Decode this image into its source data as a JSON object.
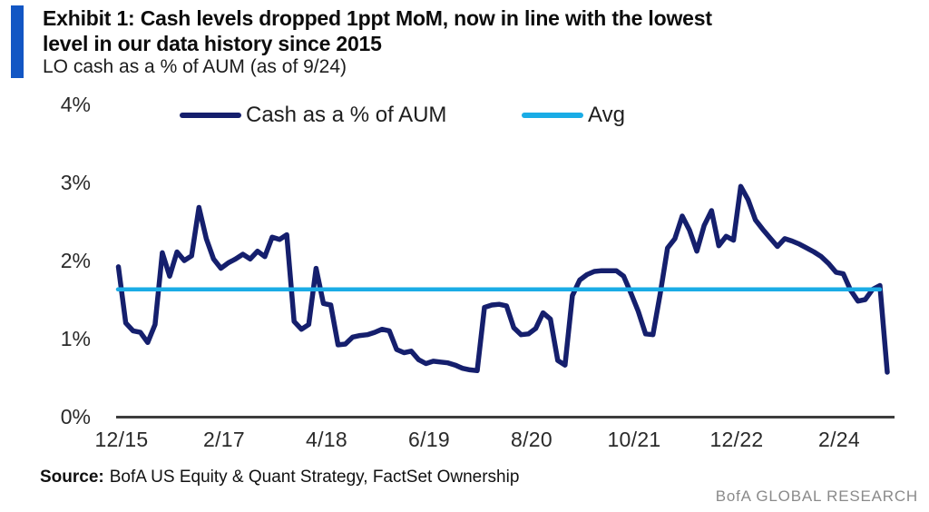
{
  "header": {
    "accent_color": "#1256c4",
    "title_line1": "Exhibit 1: Cash levels dropped 1ppt MoM, now in line with the lowest",
    "title_line2": "level in our data history since 2015",
    "subtitle": "LO cash as a % of AUM (as of 9/24)"
  },
  "chart_data": {
    "type": "line",
    "title": "LO cash as a % of AUM (as of 9/24)",
    "grid": false,
    "legend_position": "top",
    "xlabel": "",
    "ylabel": "Cash as a % of AUM",
    "ylim": [
      0,
      4
    ],
    "y_unit": "%",
    "y_tick_labels": [
      "4%",
      "3%",
      "2%",
      "1%",
      "0%"
    ],
    "x_tick_labels": [
      "12/15",
      "2/17",
      "4/18",
      "6/19",
      "8/20",
      "10/21",
      "12/22",
      "2/24"
    ],
    "x_frequency": "monthly",
    "x_range": [
      "12/15",
      "9/24"
    ],
    "series": [
      {
        "name": "Cash as a % of AUM",
        "color": "#151f6d",
        "values": [
          1.92,
          1.2,
          1.1,
          1.08,
          0.95,
          1.18,
          2.1,
          1.8,
          2.11,
          2.0,
          2.06,
          2.68,
          2.28,
          2.02,
          1.9,
          1.97,
          2.02,
          2.08,
          2.02,
          2.12,
          2.05,
          2.3,
          2.27,
          2.33,
          1.22,
          1.12,
          1.18,
          1.9,
          1.45,
          1.43,
          0.92,
          0.93,
          1.02,
          1.04,
          1.05,
          1.08,
          1.12,
          1.1,
          0.86,
          0.82,
          0.84,
          0.73,
          0.68,
          0.71,
          0.7,
          0.69,
          0.66,
          0.62,
          0.6,
          0.59,
          1.4,
          1.43,
          1.44,
          1.42,
          1.14,
          1.05,
          1.06,
          1.13,
          1.33,
          1.25,
          0.72,
          0.66,
          1.55,
          1.75,
          1.82,
          1.86,
          1.87,
          1.87,
          1.87,
          1.8,
          1.58,
          1.35,
          1.06,
          1.05,
          1.58,
          2.16,
          2.28,
          2.57,
          2.39,
          2.12,
          2.45,
          2.64,
          2.19,
          2.31,
          2.26,
          2.95,
          2.78,
          2.52,
          2.4,
          2.29,
          2.18,
          2.28,
          2.25,
          2.21,
          2.16,
          2.11,
          2.05,
          1.96,
          1.85,
          1.83,
          1.62,
          1.48,
          1.5,
          1.63,
          1.68,
          0.57
        ]
      },
      {
        "name": "Avg",
        "color": "#1aace6",
        "type": "constant",
        "value": 1.63
      }
    ]
  },
  "footer": {
    "source_label": "Source:",
    "source_text": "BofA US Equity & Quant Strategy, FactSet Ownership",
    "brand": "BofA GLOBAL RESEARCH"
  }
}
